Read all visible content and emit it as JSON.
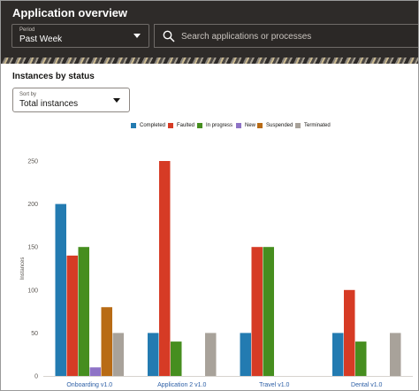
{
  "header": {
    "title": "Application overview",
    "period": {
      "caption": "Period",
      "value": "Past Week"
    },
    "search": {
      "placeholder": "Search applications or processes",
      "value": ""
    }
  },
  "section": {
    "title": "Instances by status",
    "sort": {
      "caption": "Sort by",
      "value": "Total instances"
    }
  },
  "icons": {
    "period_dropdown": "chevron-down-icon",
    "search": "search-icon",
    "sort_dropdown": "chevron-down-icon"
  },
  "chart_data": {
    "type": "bar",
    "title": "",
    "xlabel": "",
    "ylabel": "Instances",
    "ylim": [
      0,
      250
    ],
    "yticks": [
      0,
      50,
      100,
      150,
      200,
      250
    ],
    "grid": false,
    "legend_position": "top",
    "categories": [
      "Onboarding v1.0",
      "Application 2 v1.0",
      "Travel v1.0",
      "Dental v1.0"
    ],
    "series": [
      {
        "name": "Completed",
        "color": "#237bb1",
        "values": [
          200,
          50,
          50,
          50
        ]
      },
      {
        "name": "Faulted",
        "color": "#d63b25",
        "values": [
          140,
          250,
          150,
          100
        ]
      },
      {
        "name": "In progress",
        "color": "#468e1f",
        "values": [
          150,
          40,
          150,
          40
        ]
      },
      {
        "name": "New",
        "color": "#8e73c6",
        "values": [
          10,
          0,
          0,
          0
        ]
      },
      {
        "name": "Suspended",
        "color": "#b86b15",
        "values": [
          80,
          0,
          0,
          0
        ]
      },
      {
        "name": "Terminated",
        "color": "#a8a29a",
        "values": [
          50,
          50,
          0,
          50
        ]
      }
    ]
  }
}
